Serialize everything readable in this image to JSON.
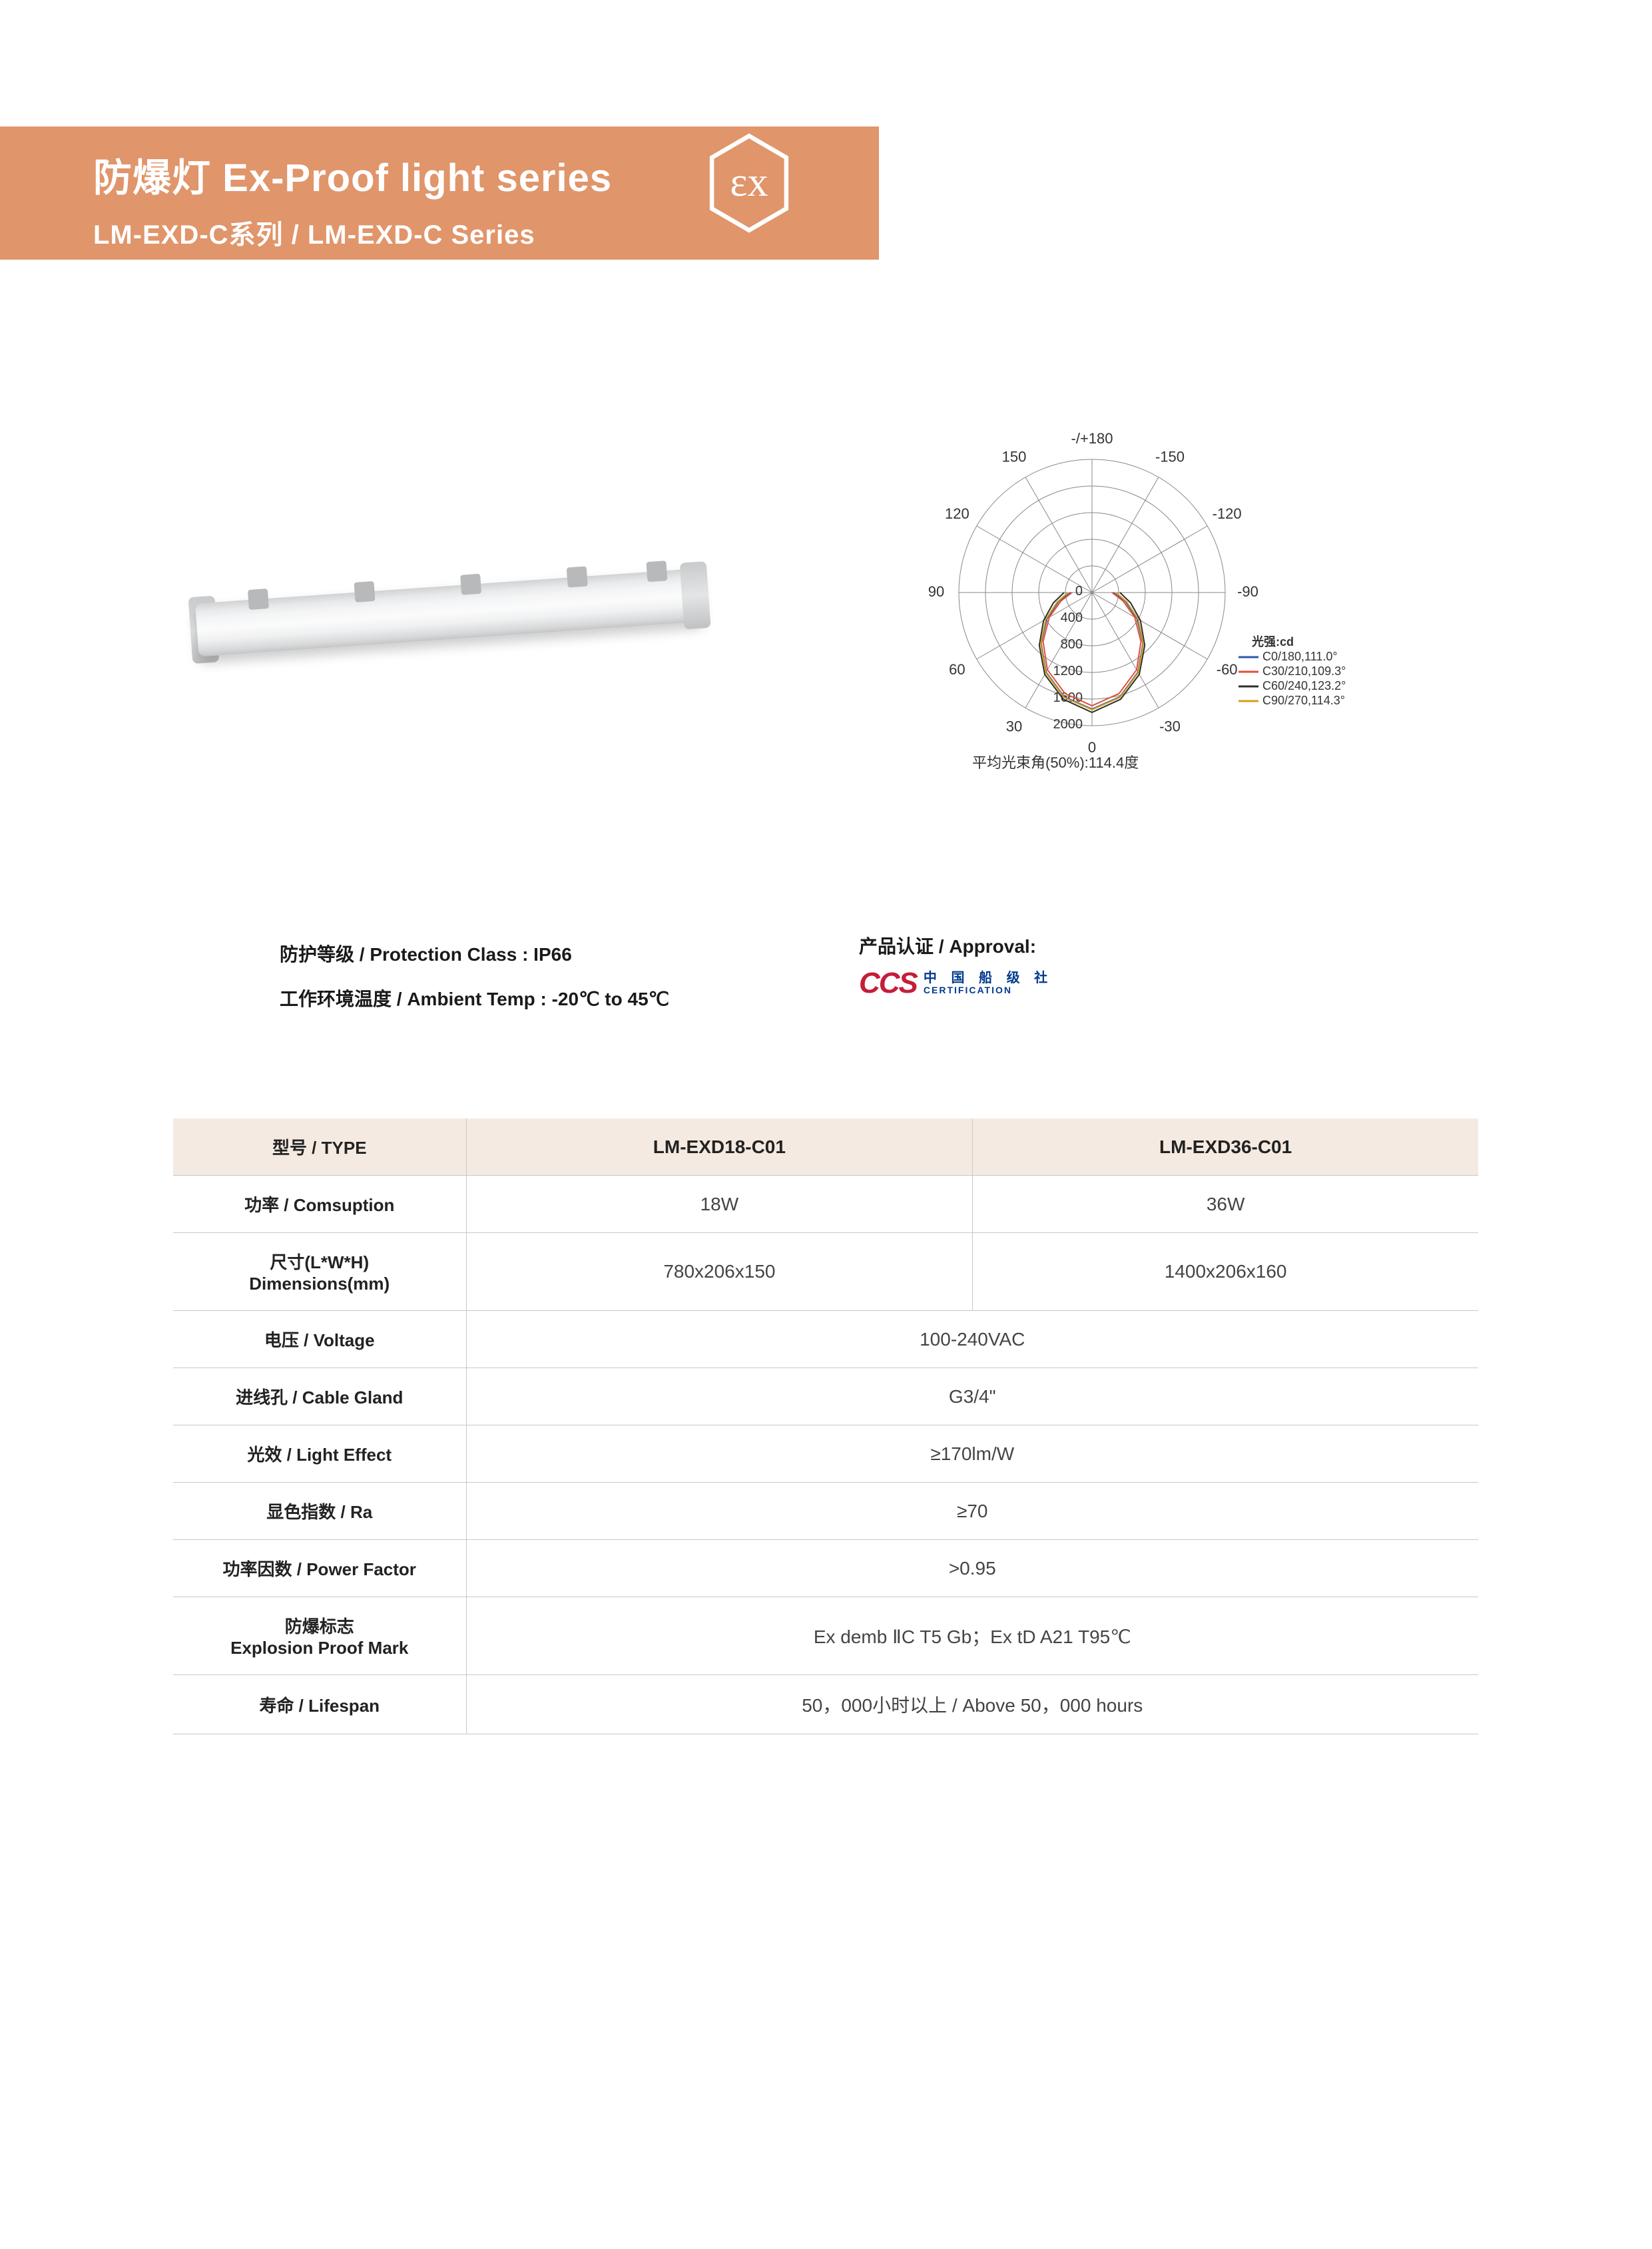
{
  "header": {
    "title_cn": "防爆灯",
    "title_en": "Ex-Proof light series",
    "subtitle": "LM-EXD-C系列 / LM-EXD-C Series",
    "banner_color": "#e0956a",
    "ex_logo_label": "εx"
  },
  "polar": {
    "title": "-/+180",
    "angle_labels": [
      "-150",
      "150",
      "-120",
      "120",
      "-90",
      "90",
      "-60",
      "60",
      "-30",
      "30",
      "0"
    ],
    "radii": [
      0,
      400,
      800,
      1200,
      1600,
      2000
    ],
    "legend_title": "光强:cd",
    "legend": [
      {
        "label": "C0/180,111.0°",
        "color": "#2e5aa8"
      },
      {
        "label": "C30/210,109.3°",
        "color": "#e74c3c"
      },
      {
        "label": "C60/240,123.2°",
        "color": "#2e2e2e"
      },
      {
        "label": "C90/270,114.3°",
        "color": "#d4a017"
      }
    ],
    "caption": "平均光束角(50%):114.4度",
    "grid_color": "#888888",
    "series": [
      {
        "color": "#2e5aa8",
        "points": [
          [
            -90,
            320
          ],
          [
            -75,
            520
          ],
          [
            -60,
            780
          ],
          [
            -45,
            1080
          ],
          [
            -30,
            1380
          ],
          [
            -15,
            1620
          ],
          [
            0,
            1750
          ],
          [
            15,
            1620
          ],
          [
            30,
            1380
          ],
          [
            45,
            1080
          ],
          [
            60,
            780
          ],
          [
            75,
            520
          ],
          [
            90,
            320
          ]
        ]
      },
      {
        "color": "#e74c3c",
        "points": [
          [
            -90,
            300
          ],
          [
            -75,
            480
          ],
          [
            -60,
            740
          ],
          [
            -45,
            1040
          ],
          [
            -30,
            1340
          ],
          [
            -15,
            1570
          ],
          [
            0,
            1700
          ],
          [
            15,
            1570
          ],
          [
            30,
            1340
          ],
          [
            45,
            1040
          ],
          [
            60,
            740
          ],
          [
            75,
            480
          ],
          [
            90,
            300
          ]
        ]
      },
      {
        "color": "#2e2e2e",
        "points": [
          [
            -90,
            420
          ],
          [
            -75,
            600
          ],
          [
            -60,
            840
          ],
          [
            -45,
            1120
          ],
          [
            -30,
            1420
          ],
          [
            -15,
            1660
          ],
          [
            0,
            1800
          ],
          [
            15,
            1660
          ],
          [
            30,
            1420
          ],
          [
            45,
            1120
          ],
          [
            60,
            840
          ],
          [
            75,
            600
          ],
          [
            90,
            420
          ]
        ]
      },
      {
        "color": "#d4a017",
        "points": [
          [
            -90,
            360
          ],
          [
            -75,
            540
          ],
          [
            -60,
            800
          ],
          [
            -45,
            1090
          ],
          [
            -30,
            1390
          ],
          [
            -15,
            1630
          ],
          [
            0,
            1760
          ],
          [
            15,
            1630
          ],
          [
            30,
            1390
          ],
          [
            45,
            1090
          ],
          [
            60,
            800
          ],
          [
            75,
            540
          ],
          [
            90,
            360
          ]
        ]
      }
    ]
  },
  "specs": {
    "protection": "防护等级 / Protection Class : IP66",
    "ambient": "工作环境温度 / Ambient Temp : -20℃ to 45℃",
    "approval_label": "产品认证 / Approval:",
    "ccs_text": "CCS",
    "ccs_cn_top": "中 国 船 级 社",
    "ccs_cn_bot": "CERTIFICATION"
  },
  "table": {
    "header_bg": "#f4eae2",
    "border_color": "#c8c8c8",
    "columns": [
      "型号 / TYPE",
      "LM-EXD18-C01",
      "LM-EXD36-C01"
    ],
    "rows": [
      {
        "label": "功率 / Comsuption",
        "cells": [
          "18W",
          "36W"
        ],
        "span": false
      },
      {
        "label": "尺寸(L*W*H)",
        "sublabel": "Dimensions(mm)",
        "cells": [
          "780x206x150",
          "1400x206x160"
        ],
        "span": false
      },
      {
        "label": "电压 / Voltage",
        "cells": [
          "100-240VAC"
        ],
        "span": true
      },
      {
        "label": "进线孔 / Cable Gland",
        "cells": [
          "G3/4\""
        ],
        "span": true
      },
      {
        "label": "光效 / Light Effect",
        "cells": [
          "≥170lm/W"
        ],
        "span": true
      },
      {
        "label": "显色指数  /  Ra",
        "cells": [
          "≥70"
        ],
        "span": true
      },
      {
        "label": "功率因数 / Power Factor",
        "cells": [
          ">0.95"
        ],
        "span": true
      },
      {
        "label": "防爆标志",
        "sublabel": "Explosion Proof Mark",
        "cells": [
          "Ex demb ⅡC T5 Gb；Ex tD A21 T95℃"
        ],
        "span": true
      },
      {
        "label": "寿命 / Lifespan",
        "cells": [
          "50，000小时以上 / Above 50，000 hours"
        ],
        "span": true
      }
    ]
  }
}
